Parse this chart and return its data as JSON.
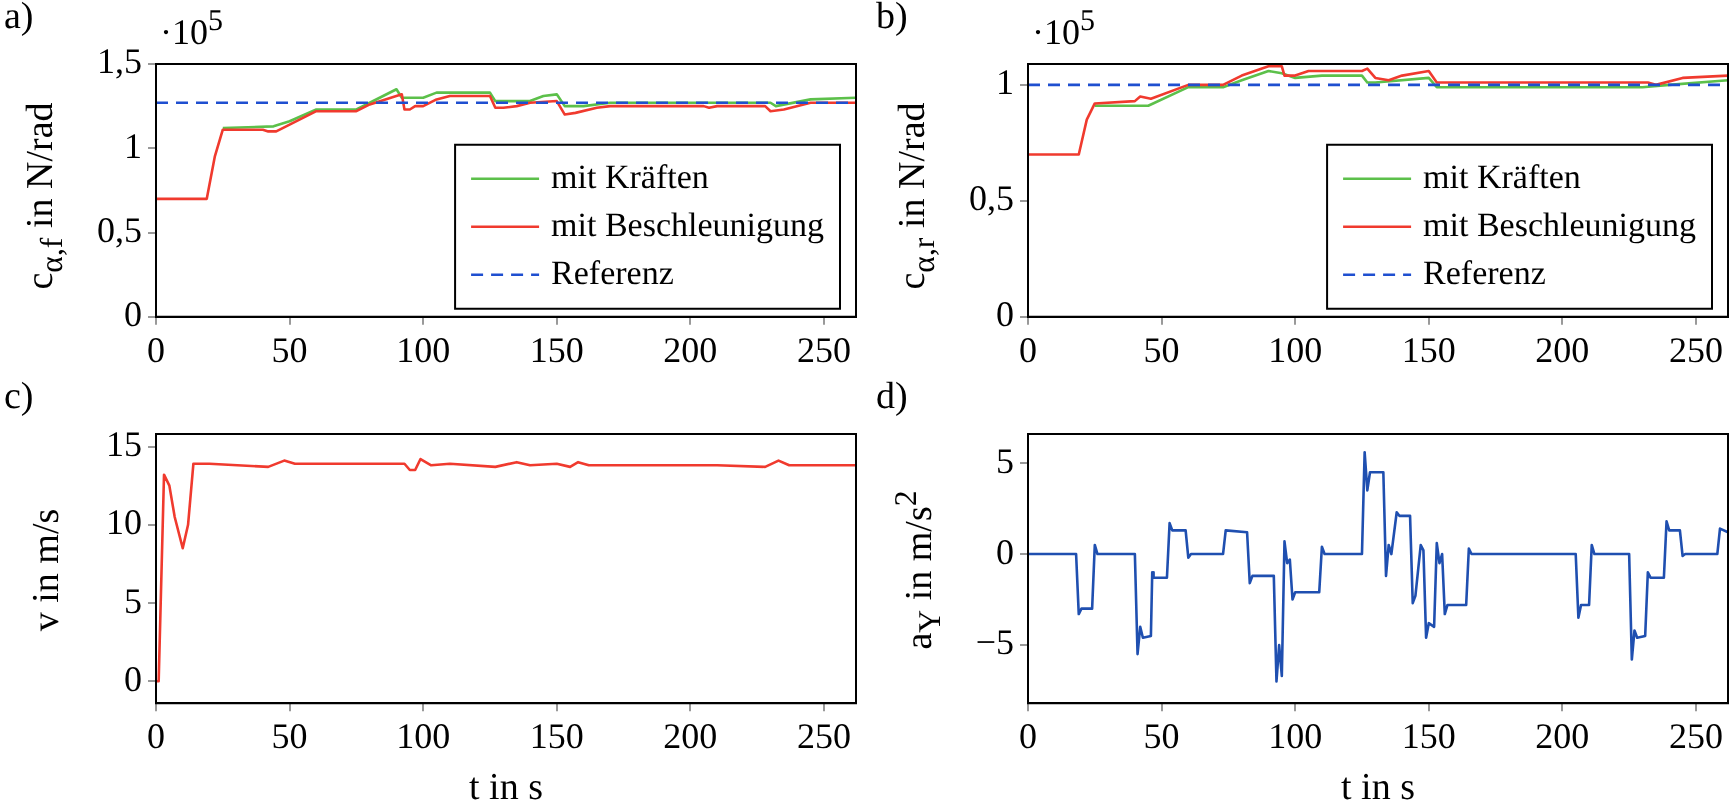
{
  "chart_data": [
    {
      "type": "line",
      "title": "a)",
      "ylabel": "c$_{α,f}$ in N/rad",
      "annotations": [
        "·10$^{5}$"
      ],
      "xlim": [
        0,
        262
      ],
      "xticks": [
        0,
        50,
        100,
        150,
        200,
        250
      ],
      "ylim": [
        0,
        1.5
      ],
      "yticks": [
        0,
        {
          "value": 0.5,
          "label": "0,5"
        },
        1,
        {
          "value": 1.5,
          "label": "1,5"
        }
      ],
      "grid": false,
      "legend": "bottom right",
      "ref_lines": [
        {
          "axis": "y",
          "value": 1.27,
          "label": "Referenz",
          "color": "#1f4fd0",
          "line_style": "dashed"
        }
      ],
      "series": [
        {
          "name": "mit Kräften",
          "color": "#5cc04a",
          "x": [
            25,
            44,
            50,
            60,
            75,
            80,
            90,
            92,
            100,
            105,
            125,
            127,
            140,
            145,
            150,
            153,
            160,
            170,
            230,
            232,
            245,
            262
          ],
          "values": [
            1.12,
            1.13,
            1.16,
            1.23,
            1.23,
            1.27,
            1.35,
            1.3,
            1.3,
            1.33,
            1.33,
            1.28,
            1.28,
            1.31,
            1.32,
            1.25,
            1.25,
            1.27,
            1.27,
            1.25,
            1.29,
            1.3
          ]
        },
        {
          "name": "mit Beschleunigung",
          "color": "#f03a2e",
          "x": [
            0,
            19,
            22,
            25,
            40,
            42,
            45,
            60,
            75,
            80,
            92,
            93,
            95,
            97,
            100,
            105,
            110,
            125,
            127,
            130,
            135,
            140,
            150,
            153,
            157,
            165,
            170,
            205,
            207,
            210,
            228,
            230,
            235,
            245,
            262
          ],
          "values": [
            0.7,
            0.7,
            0.95,
            1.11,
            1.11,
            1.1,
            1.1,
            1.22,
            1.22,
            1.26,
            1.32,
            1.23,
            1.23,
            1.25,
            1.25,
            1.29,
            1.31,
            1.31,
            1.24,
            1.24,
            1.25,
            1.27,
            1.28,
            1.2,
            1.21,
            1.24,
            1.25,
            1.25,
            1.24,
            1.25,
            1.25,
            1.22,
            1.23,
            1.27,
            1.27
          ]
        }
      ]
    },
    {
      "type": "line",
      "title": "b)",
      "ylabel": "c$_{α,r}$ in N/rad",
      "annotations": [
        "·10$^{5}$"
      ],
      "xlim": [
        0,
        262
      ],
      "xticks": [
        0,
        50,
        100,
        150,
        200,
        250
      ],
      "ylim": [
        0,
        1.09
      ],
      "yticks": [
        0,
        {
          "value": 0.5,
          "label": "0,5"
        },
        1
      ],
      "grid": false,
      "legend": "bottom right",
      "ref_lines": [
        {
          "axis": "y",
          "value": 1.0,
          "label": "Referenz",
          "color": "#1f4fd0",
          "line_style": "dashed"
        }
      ],
      "series": [
        {
          "name": "mit Kräften",
          "color": "#5cc04a",
          "x": [
            25,
            45,
            60,
            73,
            80,
            90,
            95,
            100,
            110,
            125,
            127,
            130,
            150,
            153,
            157,
            230,
            240,
            262
          ],
          "values": [
            0.91,
            0.91,
            0.99,
            0.99,
            1.02,
            1.06,
            1.05,
            1.03,
            1.04,
            1.04,
            1.01,
            1.01,
            1.03,
            0.99,
            0.99,
            0.99,
            1.0,
            1.02
          ]
        },
        {
          "name": "mit Beschleunigung",
          "color": "#f03a2e",
          "x": [
            0,
            19,
            22,
            25,
            40,
            42,
            46,
            60,
            73,
            80,
            90,
            95,
            96,
            100,
            105,
            125,
            127,
            130,
            135,
            140,
            150,
            153,
            157,
            200,
            232,
            235,
            245,
            262
          ],
          "values": [
            0.7,
            0.7,
            0.85,
            0.92,
            0.93,
            0.95,
            0.94,
            1.0,
            1.0,
            1.04,
            1.08,
            1.08,
            1.04,
            1.04,
            1.06,
            1.06,
            1.07,
            1.03,
            1.02,
            1.04,
            1.06,
            1.01,
            1.01,
            1.01,
            1.01,
            1.0,
            1.03,
            1.04
          ]
        }
      ]
    },
    {
      "type": "line",
      "title": "c)",
      "ylabel": "v in m/s",
      "xlabel": "t in s",
      "xlim": [
        0,
        262
      ],
      "xticks": [
        0,
        50,
        100,
        150,
        200,
        250
      ],
      "ylim": [
        -1.4,
        15.8
      ],
      "yticks": [
        0,
        5,
        10,
        15
      ],
      "grid": false,
      "series": [
        {
          "color": "#f03a2e",
          "x": [
            0,
            1,
            3,
            5,
            7,
            10,
            12,
            14,
            20,
            42,
            48,
            52,
            93,
            95,
            97,
            99,
            103,
            110,
            127,
            135,
            140,
            150,
            155,
            158,
            162,
            210,
            228,
            233,
            237,
            262
          ],
          "values": [
            0,
            0,
            13.2,
            12.5,
            10.5,
            8.5,
            10,
            13.9,
            13.9,
            13.7,
            14.1,
            13.9,
            13.9,
            13.5,
            13.5,
            14.2,
            13.8,
            13.9,
            13.7,
            14.0,
            13.8,
            13.9,
            13.7,
            14.0,
            13.8,
            13.8,
            13.7,
            14.1,
            13.8,
            13.8
          ]
        }
      ]
    },
    {
      "type": "line",
      "title": "d)",
      "ylabel": "a$_{Y}$ in m/s$^{2}$",
      "xlabel": "t in s",
      "xlim": [
        0,
        262
      ],
      "xticks": [
        0,
        50,
        100,
        150,
        200,
        250
      ],
      "ylim": [
        -8.2,
        6.6
      ],
      "yticks": [
        {
          "value": -5,
          "label": "−5"
        },
        0,
        5
      ],
      "grid": false,
      "series": [
        {
          "color": "#1f4fb0",
          "x": [
            0,
            18,
            19,
            20,
            24,
            25,
            26,
            40,
            41,
            42,
            43,
            46,
            46.5,
            47,
            52,
            53,
            54,
            59,
            60,
            61,
            73,
            74,
            82,
            83,
            84,
            92,
            93,
            94,
            95,
            96,
            97,
            98,
            99,
            100,
            109,
            110,
            111,
            125,
            126,
            127,
            128,
            133,
            134,
            135,
            136,
            138,
            139,
            143,
            144,
            145,
            147,
            148,
            149,
            150,
            152,
            153,
            154,
            155,
            156,
            157,
            164,
            165,
            166,
            205,
            206,
            207,
            210,
            211,
            212,
            225,
            226,
            227,
            228,
            231,
            232,
            233,
            238,
            239,
            240,
            244,
            245,
            246,
            258,
            259,
            262
          ],
          "values": [
            0,
            0,
            -3.3,
            -3.0,
            -3.0,
            0.5,
            0,
            0,
            -5.5,
            -4.0,
            -4.6,
            -4.5,
            -1.0,
            -1.3,
            -1.3,
            1.7,
            1.3,
            1.3,
            -0.2,
            0,
            0,
            1.3,
            1.2,
            -1.6,
            -1.2,
            -1.2,
            -7.0,
            -5.0,
            -6.7,
            0.7,
            -0.5,
            -0.3,
            -2.5,
            -2.1,
            -2.1,
            0.4,
            0,
            0,
            5.6,
            3.5,
            4.5,
            4.5,
            -1.2,
            0.5,
            0,
            2.3,
            2.1,
            2.1,
            -2.7,
            -2.3,
            0.5,
            0.2,
            -4.6,
            -3.8,
            -4.0,
            0.6,
            -0.5,
            0,
            -3.3,
            -2.8,
            -2.8,
            0.3,
            0,
            0,
            -3.5,
            -2.8,
            -2.8,
            0.5,
            0,
            0,
            -5.8,
            -4.2,
            -4.6,
            -4.5,
            -1.0,
            -1.3,
            -1.3,
            1.8,
            1.3,
            1.3,
            -0.1,
            0,
            0,
            1.4,
            1.2
          ]
        }
      ]
    }
  ]
}
